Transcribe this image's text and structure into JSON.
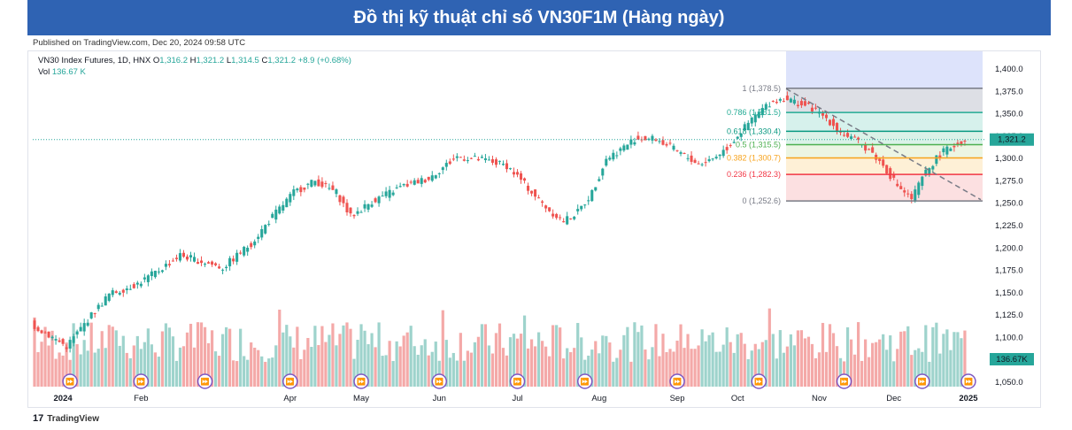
{
  "banner_title": "Đồ thị kỹ thuật chỉ số VN30F1M (Hàng ngày)",
  "published": "Published on TradingView.com, Dec 20, 2024 09:58 UTC",
  "legend": {
    "symbol": "VN30 Index Futures, 1D, HNX",
    "o_label": "O",
    "o_value": "1,316.2",
    "h_label": "H",
    "h_value": "1,321.2",
    "l_label": "L",
    "l_value": "1,314.5",
    "c_label": "C",
    "c_value": "1,321.2",
    "change": "+8.9 (+0.68%)",
    "vol_label": "Vol",
    "vol_value": "136.67 K"
  },
  "footer": {
    "logo": "17",
    "brand": "TradingView"
  },
  "colors": {
    "up": "#26a69a",
    "down": "#ef5350",
    "banner": "#2f63b3",
    "vol_up": "#9ed3cc",
    "vol_down": "#f4a9a8"
  },
  "chart_data": {
    "type": "candlestick",
    "price_axis": {
      "range": [
        1045,
        1405
      ],
      "ticks": [
        "1,400.0",
        "1,375.0",
        "1,350.0",
        "1,325.0",
        "1,300.0",
        "1,275.0",
        "1,250.0",
        "1,225.0",
        "1,200.0",
        "1,175.0",
        "1,150.0",
        "1,125.0",
        "1,100.0",
        "1,075.0",
        "1,050.0"
      ],
      "tick_values": [
        1400,
        1375,
        1350,
        1325,
        1300,
        1275,
        1250,
        1225,
        1200,
        1175,
        1150,
        1125,
        1100,
        1075,
        1050
      ]
    },
    "last_price_label": "1,321.2",
    "last_price": 1321.2,
    "volume_label": "136.67K",
    "time_axis": {
      "labels": [
        "2024",
        "Feb",
        "Apr",
        "May",
        "Jun",
        "Jul",
        "Aug",
        "Sep",
        "Oct",
        "Nov",
        "Dec",
        "2025"
      ],
      "label_index": [
        8,
        30,
        72,
        92,
        114,
        136,
        159,
        181,
        198,
        221,
        242,
        263
      ],
      "total_slots": 268
    },
    "price_path": [
      [
        0,
        1115
      ],
      [
        10,
        1090
      ],
      [
        16,
        1120
      ],
      [
        22,
        1148
      ],
      [
        30,
        1160
      ],
      [
        36,
        1175
      ],
      [
        42,
        1192
      ],
      [
        48,
        1185
      ],
      [
        54,
        1178
      ],
      [
        62,
        1205
      ],
      [
        68,
        1235
      ],
      [
        74,
        1262
      ],
      [
        80,
        1275
      ],
      [
        86,
        1262
      ],
      [
        90,
        1235
      ],
      [
        96,
        1252
      ],
      [
        104,
        1268
      ],
      [
        112,
        1278
      ],
      [
        120,
        1302
      ],
      [
        128,
        1298
      ],
      [
        134,
        1292
      ],
      [
        138,
        1276
      ],
      [
        142,
        1258
      ],
      [
        146,
        1242
      ],
      [
        150,
        1230
      ],
      [
        154,
        1240
      ],
      [
        158,
        1262
      ],
      [
        162,
        1300
      ],
      [
        166,
        1310
      ],
      [
        170,
        1322
      ],
      [
        176,
        1322
      ],
      [
        182,
        1308
      ],
      [
        188,
        1294
      ],
      [
        192,
        1300
      ],
      [
        196,
        1312
      ],
      [
        200,
        1330
      ],
      [
        204,
        1348
      ],
      [
        208,
        1362
      ],
      [
        212,
        1368
      ],
      [
        216,
        1362
      ],
      [
        220,
        1356
      ],
      [
        224,
        1345
      ],
      [
        228,
        1330
      ],
      [
        232,
        1320
      ],
      [
        236,
        1310
      ],
      [
        240,
        1292
      ],
      [
        244,
        1270
      ],
      [
        248,
        1255
      ],
      [
        252,
        1285
      ],
      [
        256,
        1305
      ],
      [
        260,
        1315
      ],
      [
        263,
        1320
      ]
    ],
    "fibonacci": {
      "levels": [
        {
          "label": "1 (1,378.5)",
          "price": 1378.5,
          "color": "#787b86"
        },
        {
          "label": "0.786 (1,351.5)",
          "price": 1351.5,
          "color": "#22ab94"
        },
        {
          "label": "0.618 (1,330.4)",
          "price": 1330.4,
          "color": "#089981"
        },
        {
          "label": "0.5 (1,315.5)",
          "price": 1315.5,
          "color": "#4caf50"
        },
        {
          "label": "0.382 (1,300.7)",
          "price": 1300.7,
          "color": "#f7a21b"
        },
        {
          "label": "0.236 (1,282.3)",
          "price": 1282.3,
          "color": "#f23645"
        },
        {
          "label": "0 (1,252.6)",
          "price": 1252.6,
          "color": "#787b86"
        }
      ],
      "zone_fills": [
        "#d1d4dc",
        "#c8ece6",
        "#cdeee0",
        "#e5f2d9",
        "#fdebc8",
        "#fbd5d7"
      ]
    },
    "event_markers": 14
  }
}
